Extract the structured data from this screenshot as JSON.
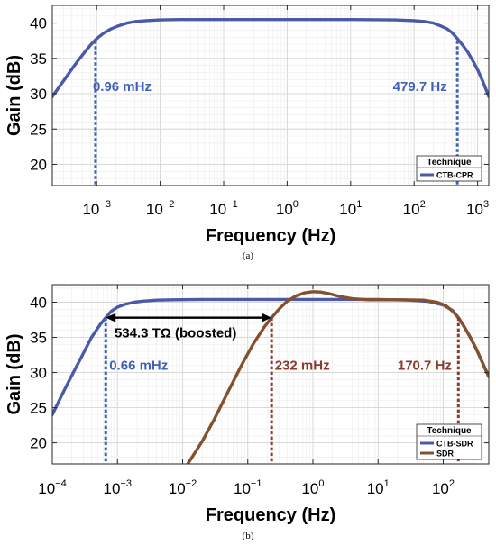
{
  "chart_data": [
    {
      "type": "line",
      "panel_caption": "(a)",
      "xlabel": "Frequency (Hz)",
      "ylabel": "Gain (dB)",
      "x_scale": "log",
      "xlim": [
        0.0002,
        1500
      ],
      "ylim": [
        17,
        42.5
      ],
      "grid": true,
      "x_ticks": [
        {
          "value": 0.001,
          "base": "10",
          "exp": "−3"
        },
        {
          "value": 0.01,
          "base": "10",
          "exp": "−2"
        },
        {
          "value": 0.1,
          "base": "10",
          "exp": "−1"
        },
        {
          "value": 1,
          "base": "10",
          "exp": "0"
        },
        {
          "value": 10,
          "base": "10",
          "exp": "1"
        },
        {
          "value": 100,
          "base": "10",
          "exp": "2"
        },
        {
          "value": 1000,
          "base": "10",
          "exp": "3"
        }
      ],
      "y_ticks": [
        {
          "value": 20,
          "label": "20"
        },
        {
          "value": 25,
          "label": "25"
        },
        {
          "value": 30,
          "label": "30"
        },
        {
          "value": 35,
          "label": "35"
        },
        {
          "value": 40,
          "label": "40"
        }
      ],
      "legend": {
        "title": "Technique",
        "position": "bottom-right"
      },
      "series": [
        {
          "name": "CTB-CPR",
          "color": "#4a5aa8",
          "x": [
            0.0002,
            0.0003,
            0.0004,
            0.0005,
            0.00065,
            0.0008,
            0.001,
            0.0013,
            0.0017,
            0.0022,
            0.003,
            0.004,
            0.006,
            0.01,
            0.02,
            0.05,
            0.1,
            1,
            10,
            50,
            100,
            150,
            200,
            260,
            330,
            400,
            480,
            580,
            700,
            850,
            1000,
            1200,
            1500
          ],
          "y": [
            29.6,
            31.8,
            33.4,
            34.6,
            35.9,
            36.9,
            37.8,
            38.6,
            39.2,
            39.6,
            40.0,
            40.2,
            40.35,
            40.45,
            40.5,
            40.5,
            40.5,
            40.5,
            40.5,
            40.45,
            40.35,
            40.2,
            40.0,
            39.6,
            39.2,
            38.6,
            37.8,
            36.9,
            35.9,
            34.6,
            33.4,
            31.8,
            29.6
          ]
        }
      ],
      "markers": [
        {
          "x": 0.00096,
          "y": 37.5,
          "color": "#3f62b8",
          "label": "0.96 mHz",
          "label_x": 0.00087,
          "label_y": 30.4,
          "anchor": "start"
        },
        {
          "x": 479.7,
          "y": 37.5,
          "color": "#3f62b8",
          "label": "479.7 Hz",
          "label_x": 330,
          "label_y": 30.4,
          "anchor": "end"
        }
      ]
    },
    {
      "type": "line",
      "panel_caption": "(b)",
      "xlabel": "Frequency (Hz)",
      "ylabel": "Gain (dB)",
      "x_scale": "log",
      "xlim": [
        0.0001,
        500
      ],
      "ylim": [
        17,
        42.5
      ],
      "grid": true,
      "x_ticks": [
        {
          "value": 0.0001,
          "base": "10",
          "exp": "−4"
        },
        {
          "value": 0.001,
          "base": "10",
          "exp": "−3"
        },
        {
          "value": 0.01,
          "base": "10",
          "exp": "−2"
        },
        {
          "value": 0.1,
          "base": "10",
          "exp": "−1"
        },
        {
          "value": 1,
          "base": "10",
          "exp": "0"
        },
        {
          "value": 10,
          "base": "10",
          "exp": "1"
        },
        {
          "value": 100,
          "base": "10",
          "exp": "2"
        }
      ],
      "y_ticks": [
        {
          "value": 20,
          "label": "20"
        },
        {
          "value": 25,
          "label": "25"
        },
        {
          "value": 30,
          "label": "30"
        },
        {
          "value": 35,
          "label": "35"
        },
        {
          "value": 40,
          "label": "40"
        }
      ],
      "legend": {
        "title": "Technique",
        "position": "bottom-right"
      },
      "series": [
        {
          "name": "CTB-SDR",
          "color": "#4a5aa8",
          "x": [
            0.0001,
            0.00014,
            0.0002,
            0.00028,
            0.0004,
            0.00055,
            0.00066,
            0.0008,
            0.001,
            0.0013,
            0.0018,
            0.0025,
            0.004,
            0.007,
            0.02,
            0.1,
            1,
            10,
            30,
            60,
            100,
            140,
            170.7,
            210,
            260,
            320,
            400,
            500
          ],
          "y": [
            24.0,
            26.8,
            29.6,
            32.2,
            35.0,
            36.9,
            37.8,
            38.7,
            39.3,
            39.7,
            40.0,
            40.15,
            40.3,
            40.35,
            40.4,
            40.4,
            40.4,
            40.4,
            40.3,
            40.1,
            39.6,
            38.8,
            37.8,
            36.5,
            35.0,
            33.4,
            31.4,
            29.4
          ]
        },
        {
          "name": "SDR",
          "color": "#84512e",
          "x": [
            0.012,
            0.02,
            0.03,
            0.05,
            0.08,
            0.12,
            0.18,
            0.232,
            0.3,
            0.4,
            0.55,
            0.75,
            1.0,
            1.3,
            1.8,
            2.5,
            4,
            7,
            12,
            25,
            50,
            80,
            110,
            140,
            170.7,
            210,
            260,
            320,
            400,
            500
          ],
          "y": [
            17.0,
            20.2,
            23.2,
            27.3,
            31.0,
            34.0,
            36.5,
            37.8,
            39.0,
            40.1,
            40.9,
            41.35,
            41.5,
            41.45,
            41.2,
            40.85,
            40.5,
            40.35,
            40.35,
            40.35,
            40.3,
            40.0,
            39.5,
            38.7,
            37.8,
            36.5,
            35.0,
            33.4,
            31.4,
            29.4
          ]
        }
      ],
      "markers": [
        {
          "x": 0.00066,
          "y": 37.8,
          "color": "#3f62b8",
          "label": "0.66 mHz",
          "label_x": 0.00075,
          "label_y": 30.4,
          "anchor": "start"
        },
        {
          "x": 0.232,
          "y": 37.8,
          "color": "#8b3a2b",
          "label": "232 mHz",
          "label_x": 0.26,
          "label_y": 30.4,
          "anchor": "start"
        },
        {
          "x": 170.7,
          "y": 37.8,
          "color": "#8b3a2b",
          "label": "170.7 Hz",
          "label_x": 135,
          "label_y": 30.4,
          "anchor": "end"
        }
      ],
      "arrow": {
        "x1": 0.00066,
        "x2": 0.232,
        "y": 37.8,
        "label": "534.3 TΩ (boosted)",
        "label_x": 0.0009,
        "label_y": 35.0,
        "color": "#000000"
      }
    }
  ]
}
